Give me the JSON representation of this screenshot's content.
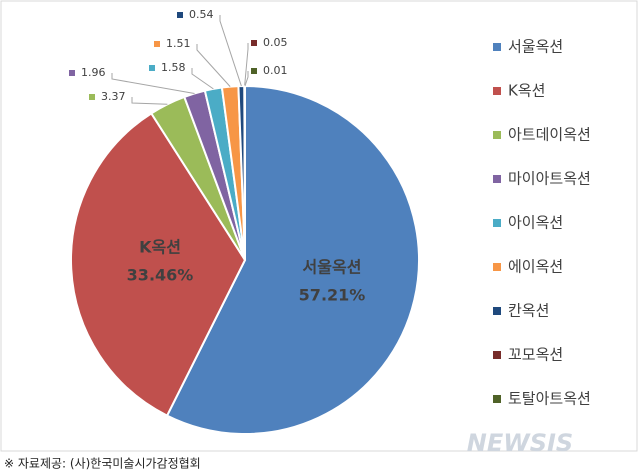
{
  "chart_data": {
    "type": "pie",
    "categories": [
      "서울옥션",
      "K옥션",
      "아트데이옥션",
      "마이아트옥션",
      "아이옥션",
      "에이옥션",
      "칸옥션",
      "꼬모옥션",
      "토탈아트옥션"
    ],
    "values": [
      57.21,
      33.46,
      3.37,
      1.96,
      1.58,
      1.51,
      0.54,
      0.05,
      0.01
    ],
    "value_labels": [
      "57.21%",
      "33.46%",
      "3.37",
      "1.96",
      "1.58",
      "1.51",
      "0.54",
      "0.05",
      "0.01"
    ],
    "colors": [
      "#4f81bd",
      "#c0504d",
      "#9bbb59",
      "#8064a2",
      "#4bacc6",
      "#f79646",
      "#1f497d",
      "#772c2a",
      "#4f6228"
    ],
    "legend": "right"
  },
  "source": "※ 자료제공: (사)한국미술시가감정협회",
  "watermark": "NEWSIS"
}
